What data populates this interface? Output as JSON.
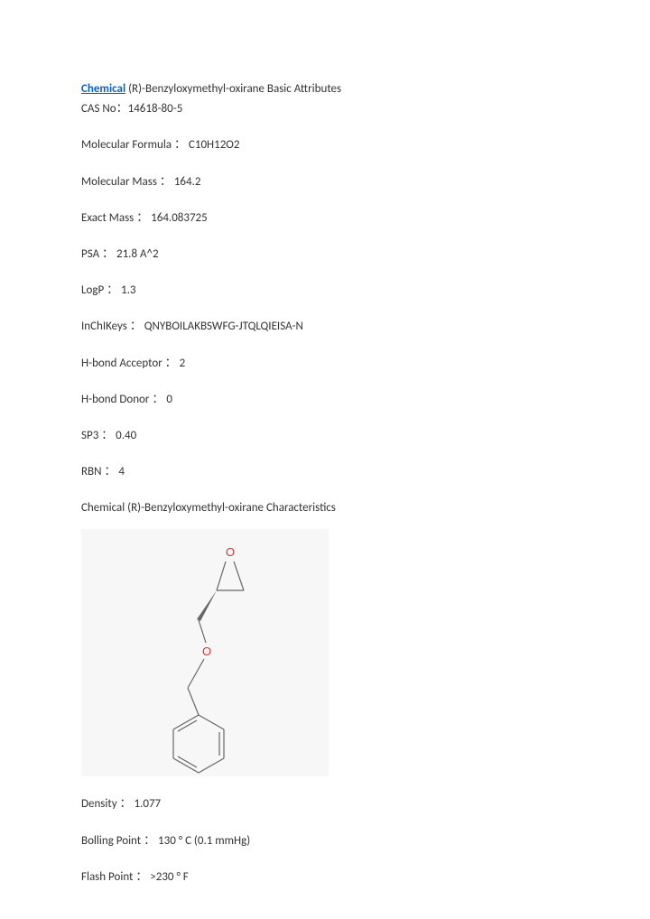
{
  "title": {
    "link_text": "Chemical",
    "suffix": " (R)-Benzyloxymethyl-oxirane Basic Attributes"
  },
  "cas": {
    "label": "CAS No：",
    "value": "14618-80-5"
  },
  "props_top": [
    {
      "label": "Molecular Formula ：",
      "value": "C10H12O2"
    },
    {
      "label": "Molecular Mass ：",
      "value": "164.2"
    },
    {
      "label": "Exact Mass ：",
      "value": "164.083725"
    },
    {
      "label": "PSA ：",
      "value": "21.8 A^2"
    },
    {
      "label": "LogP ：",
      "value": "1.3"
    },
    {
      "label": "InChIKeys ：",
      "value": "QNYBOILAKBSWFG-JTQLQIEISA-N"
    },
    {
      "label": "H-bond Acceptor ：",
      "value": "2"
    },
    {
      "label": "H-bond Donor ：",
      "value": "0"
    },
    {
      "label": "SP3 ：",
      "value": "0.40"
    },
    {
      "label": "RBN ：",
      "value": "4"
    }
  ],
  "characteristics_heading": "Chemical (R)-Benzyloxymethyl-oxirane Characteristics",
  "props_bottom": [
    {
      "label": "Density ：",
      "value": "1.077"
    },
    {
      "label": "Bolling Point ：",
      "value": "130 ° C (0.1 mmHg)"
    },
    {
      "label": "Flash Point ：",
      "value": ">230 ° F"
    }
  ],
  "structure": {
    "bg": "#f7f7f7",
    "bond_color": "#666666",
    "o_color": "#cc3333",
    "o_label": "O"
  }
}
